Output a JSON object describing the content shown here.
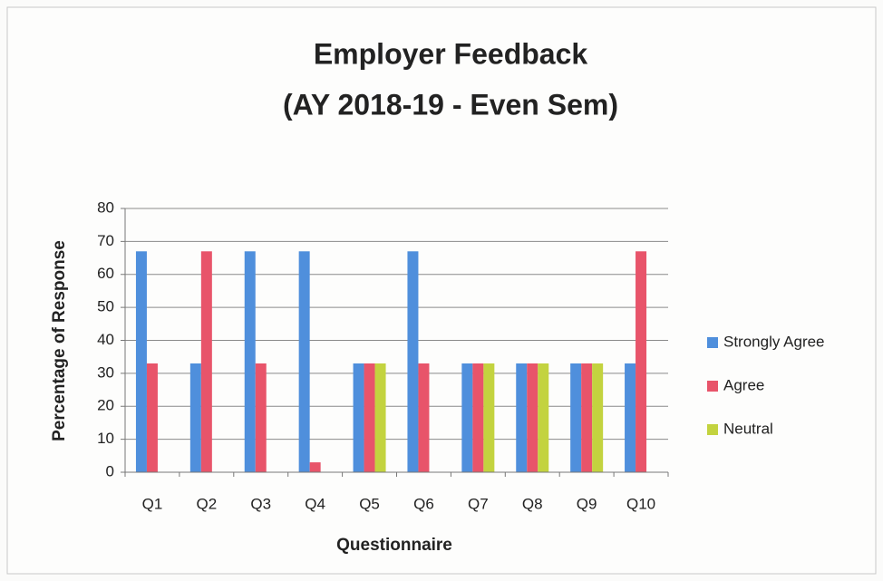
{
  "chart_data": {
    "type": "bar",
    "title": "Employer Feedback",
    "subtitle": "(AY 2018-19 - Even Sem)",
    "x_label": "Questionnaire",
    "y_label": "Percentage of Response",
    "categories": [
      "Q1",
      "Q2",
      "Q3",
      "Q4",
      "Q5",
      "Q6",
      "Q7",
      "Q8",
      "Q9",
      "Q10"
    ],
    "series": [
      {
        "name": "Strongly Agree",
        "color": "#4f8fdc",
        "values": [
          67,
          33,
          67,
          67,
          33,
          67,
          33,
          33,
          33,
          33
        ]
      },
      {
        "name": "Agree",
        "color": "#e8546a",
        "values": [
          33,
          67,
          33,
          3,
          33,
          33,
          33,
          33,
          33,
          67
        ]
      },
      {
        "name": "Neutral",
        "color": "#c3d33f",
        "values": [
          0,
          0,
          0,
          0,
          33,
          0,
          33,
          33,
          33,
          0
        ]
      }
    ],
    "ylim": [
      0,
      80
    ],
    "yticks": [
      0,
      10,
      20,
      30,
      40,
      50,
      60,
      70,
      80
    ],
    "grid": true,
    "legend": "right"
  }
}
